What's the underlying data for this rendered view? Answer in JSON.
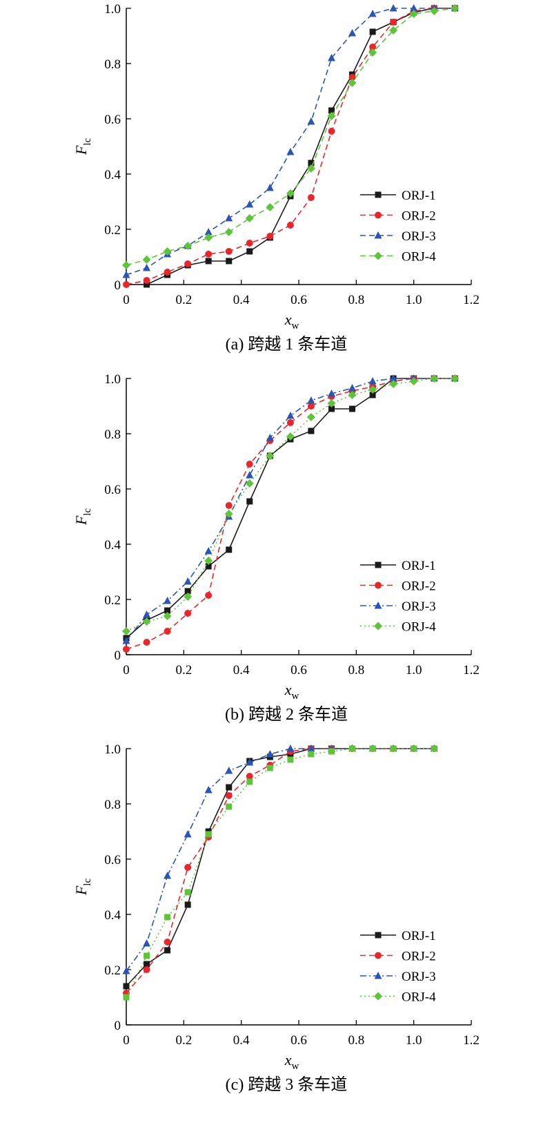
{
  "colors": {
    "ORJ-1": "#1a1a1a",
    "ORJ-2": "#e8262b",
    "ORJ-3": "#2a55b4",
    "ORJ-4": "#5ec43a"
  },
  "chart_data": [
    {
      "type": "line",
      "caption": "(a) 跨越 1 条车道",
      "xlabel": "x",
      "xlabel_sub": "w",
      "ylabel": "F",
      "ylabel_sub": "lc",
      "xlim": [
        0,
        1.2
      ],
      "ylim": [
        0,
        1.0
      ],
      "xticks": [
        "0",
        "0.2",
        "0.4",
        "0.6",
        "0.8",
        "1.0",
        "1.2"
      ],
      "yticks": [
        "0",
        "0.2",
        "0.4",
        "0.6",
        "0.8",
        "1.0"
      ],
      "legend_position": "bottom-right",
      "series": [
        {
          "name": "ORJ-1",
          "marker": "square",
          "dash": "solid",
          "x": [
            0.071,
            0.143,
            0.214,
            0.286,
            0.357,
            0.429,
            0.5,
            0.571,
            0.643,
            0.714,
            0.786,
            0.857,
            0.929,
            1.0,
            1.071,
            1.143
          ],
          "y": [
            0.0,
            0.035,
            0.07,
            0.085,
            0.085,
            0.12,
            0.17,
            0.32,
            0.44,
            0.63,
            0.76,
            0.915,
            0.95,
            0.985,
            1.0,
            1.0
          ]
        },
        {
          "name": "ORJ-2",
          "marker": "circle",
          "dash": "dashed",
          "x": [
            0.0,
            0.071,
            0.143,
            0.214,
            0.286,
            0.357,
            0.429,
            0.5,
            0.571,
            0.643,
            0.714,
            0.786,
            0.857,
            0.929,
            1.0,
            1.071,
            1.143
          ],
          "y": [
            0.0,
            0.015,
            0.045,
            0.075,
            0.11,
            0.12,
            0.15,
            0.175,
            0.215,
            0.315,
            0.555,
            0.75,
            0.86,
            0.95,
            0.99,
            1.0,
            1.0
          ]
        },
        {
          "name": "ORJ-3",
          "marker": "triangle",
          "dash": "dashed",
          "x": [
            0.0,
            0.071,
            0.143,
            0.214,
            0.286,
            0.357,
            0.429,
            0.5,
            0.571,
            0.643,
            0.714,
            0.786,
            0.857,
            0.929,
            1.0,
            1.071,
            1.143
          ],
          "y": [
            0.035,
            0.06,
            0.11,
            0.14,
            0.19,
            0.24,
            0.29,
            0.35,
            0.48,
            0.59,
            0.82,
            0.91,
            0.98,
            1.0,
            1.0,
            1.0,
            1.0
          ]
        },
        {
          "name": "ORJ-4",
          "marker": "diamond",
          "dash": "dashed",
          "x": [
            0.0,
            0.071,
            0.143,
            0.214,
            0.286,
            0.357,
            0.429,
            0.5,
            0.571,
            0.643,
            0.714,
            0.786,
            0.857,
            0.929,
            1.0,
            1.071,
            1.143
          ],
          "y": [
            0.07,
            0.09,
            0.12,
            0.14,
            0.17,
            0.19,
            0.24,
            0.28,
            0.33,
            0.42,
            0.61,
            0.73,
            0.84,
            0.92,
            0.98,
            0.99,
            1.0
          ]
        }
      ]
    },
    {
      "type": "line",
      "caption": "(b) 跨越 2 条车道",
      "xlabel": "x",
      "xlabel_sub": "w",
      "ylabel": "F",
      "ylabel_sub": "lc",
      "xlim": [
        0,
        1.2
      ],
      "ylim": [
        0,
        1.0
      ],
      "xticks": [
        "0",
        "0.2",
        "0.4",
        "0.6",
        "0.8",
        "1.0",
        "1.2"
      ],
      "yticks": [
        "0",
        "0.2",
        "0.4",
        "0.6",
        "0.8",
        "1.0"
      ],
      "legend_position": "bottom-right",
      "series": [
        {
          "name": "ORJ-1",
          "marker": "square",
          "dash": "solid",
          "x": [
            0.0,
            0.071,
            0.143,
            0.214,
            0.286,
            0.357,
            0.429,
            0.5,
            0.571,
            0.643,
            0.714,
            0.786,
            0.857,
            0.929,
            1.0,
            1.071,
            1.143
          ],
          "y": [
            0.06,
            0.125,
            0.16,
            0.23,
            0.32,
            0.38,
            0.555,
            0.72,
            0.78,
            0.81,
            0.89,
            0.89,
            0.94,
            1.0,
            1.0,
            1.0,
            1.0
          ]
        },
        {
          "name": "ORJ-2",
          "marker": "circle",
          "dash": "dashed",
          "x": [
            0.0,
            0.071,
            0.143,
            0.214,
            0.286,
            0.357,
            0.429,
            0.5,
            0.571,
            0.643,
            0.714,
            0.786,
            0.857,
            0.929,
            1.0,
            1.071,
            1.143
          ],
          "y": [
            0.02,
            0.045,
            0.085,
            0.15,
            0.215,
            0.54,
            0.69,
            0.775,
            0.84,
            0.9,
            0.935,
            0.955,
            0.97,
            0.99,
            1.0,
            1.0,
            1.0
          ]
        },
        {
          "name": "ORJ-3",
          "marker": "triangle",
          "dash": "dashdot",
          "x": [
            0.0,
            0.071,
            0.143,
            0.214,
            0.286,
            0.357,
            0.429,
            0.5,
            0.571,
            0.643,
            0.714,
            0.786,
            0.857,
            0.929,
            1.0,
            1.071,
            1.143
          ],
          "y": [
            0.05,
            0.145,
            0.195,
            0.265,
            0.375,
            0.5,
            0.65,
            0.785,
            0.865,
            0.92,
            0.945,
            0.965,
            0.99,
            1.0,
            1.0,
            1.0,
            1.0
          ]
        },
        {
          "name": "ORJ-4",
          "marker": "diamond",
          "dash": "dotted",
          "x": [
            0.0,
            0.071,
            0.143,
            0.214,
            0.286,
            0.357,
            0.429,
            0.5,
            0.571,
            0.643,
            0.714,
            0.786,
            0.857,
            0.929,
            1.0,
            1.071,
            1.143
          ],
          "y": [
            0.085,
            0.12,
            0.14,
            0.21,
            0.34,
            0.51,
            0.62,
            0.72,
            0.79,
            0.86,
            0.91,
            0.94,
            0.96,
            0.98,
            0.99,
            1.0,
            1.0
          ]
        }
      ]
    },
    {
      "type": "line",
      "caption": "(c) 跨越 3 条车道",
      "xlabel": "x",
      "xlabel_sub": "w",
      "ylabel": "F",
      "ylabel_sub": "lc",
      "xlim": [
        0,
        1.2
      ],
      "ylim": [
        0,
        1.0
      ],
      "xticks": [
        "0",
        "0.2",
        "0.4",
        "0.6",
        "0.8",
        "1.0",
        "1.2"
      ],
      "yticks": [
        "0",
        "0.2",
        "0.4",
        "0.6",
        "0.8",
        "1.0"
      ],
      "legend_position": "bottom-right",
      "series": [
        {
          "name": "ORJ-1",
          "marker": "square",
          "dash": "solid",
          "x": [
            0.0,
            0.071,
            0.143,
            0.214,
            0.286,
            0.357,
            0.429,
            0.5,
            0.571,
            0.643,
            0.714,
            0.786,
            0.857,
            0.929,
            1.0,
            1.071
          ],
          "y": [
            0.14,
            0.22,
            0.27,
            0.435,
            0.7,
            0.86,
            0.955,
            0.97,
            0.98,
            1.0,
            1.0,
            1.0,
            1.0,
            1.0,
            1.0,
            1.0
          ]
        },
        {
          "name": "ORJ-2",
          "marker": "circle",
          "dash": "dashed",
          "x": [
            0.0,
            0.071,
            0.143,
            0.214,
            0.286,
            0.357,
            0.429,
            0.5,
            0.571,
            0.643,
            0.714,
            0.786,
            0.857,
            0.929,
            1.0,
            1.071
          ],
          "y": [
            0.115,
            0.2,
            0.3,
            0.57,
            0.68,
            0.83,
            0.9,
            0.94,
            0.99,
            1.0,
            1.0,
            1.0,
            1.0,
            1.0,
            1.0,
            1.0
          ]
        },
        {
          "name": "ORJ-3",
          "marker": "triangle",
          "dash": "dashdot",
          "x": [
            0.0,
            0.071,
            0.143,
            0.214,
            0.286,
            0.357,
            0.429,
            0.5,
            0.571,
            0.643,
            0.714,
            0.786,
            0.857,
            0.929,
            1.0,
            1.071
          ],
          "y": [
            0.195,
            0.295,
            0.54,
            0.69,
            0.85,
            0.92,
            0.95,
            0.98,
            1.0,
            1.0,
            1.0,
            1.0,
            1.0,
            1.0,
            1.0,
            1.0
          ]
        },
        {
          "name": "ORJ-4",
          "marker": "square",
          "dash": "dotted",
          "x": [
            0.0,
            0.071,
            0.143,
            0.214,
            0.286,
            0.357,
            0.429,
            0.5,
            0.571,
            0.643,
            0.714,
            0.786,
            0.857,
            0.929,
            1.0,
            1.071
          ],
          "y": [
            0.1,
            0.25,
            0.39,
            0.48,
            0.69,
            0.79,
            0.88,
            0.93,
            0.96,
            0.98,
            0.99,
            1.0,
            1.0,
            1.0,
            1.0,
            1.0
          ]
        }
      ],
      "legend_markers": [
        "square",
        "circle",
        "triangle",
        "diamond"
      ]
    }
  ]
}
